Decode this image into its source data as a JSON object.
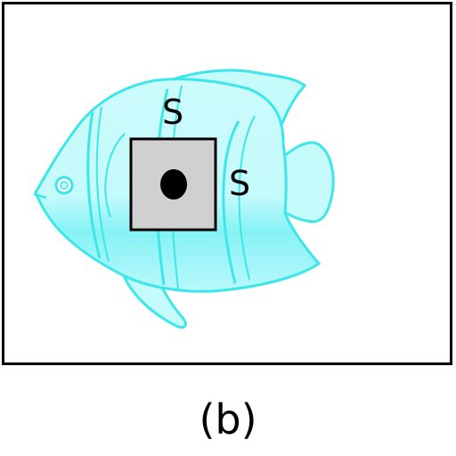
{
  "diagram": {
    "caption": "(b)",
    "labels": {
      "top": "S",
      "right": "S"
    },
    "colors": {
      "frame": "#000000",
      "fish_fill": "#c6fbfc",
      "fish_stroke": "#3ee6ea",
      "fish_belly": "#7ff1f4",
      "square_fill": "#d0d0d0",
      "square_stroke": "#000000",
      "dot": "#000000"
    }
  }
}
